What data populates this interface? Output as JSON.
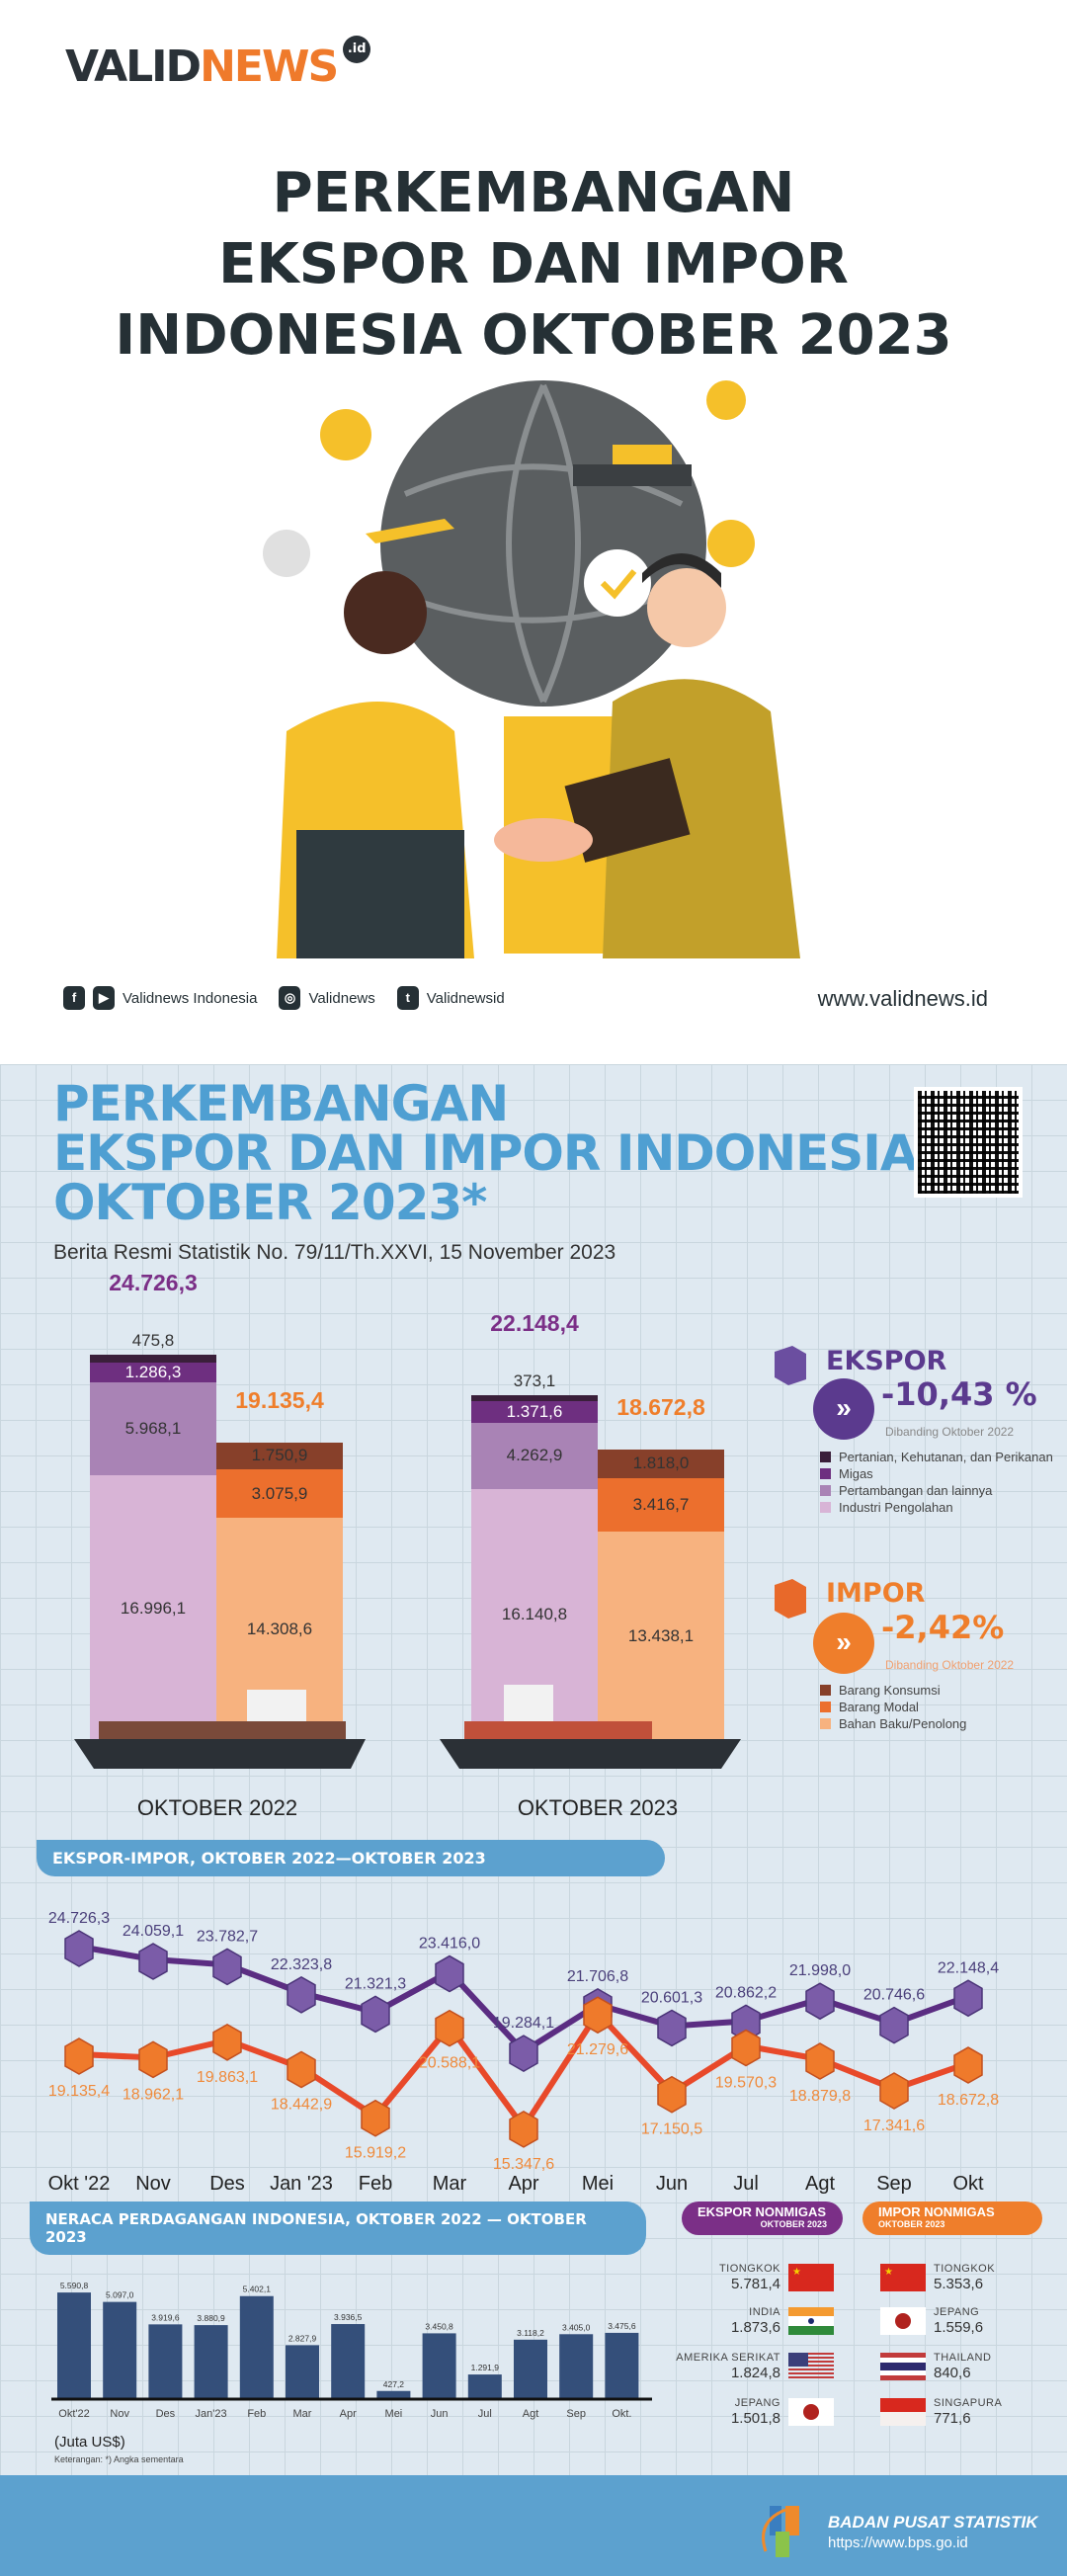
{
  "header": {
    "logo_text_dark": "VALID",
    "logo_text_orange": "NEWS",
    "logo_badge": ".id",
    "title_lines": [
      "PERKEMBANGAN",
      "EKSPOR DAN IMPOR",
      "INDONESIA OKTOBER 2023"
    ]
  },
  "social": {
    "facebook_youtube": "Validnews Indonesia",
    "instagram": "Validnews",
    "twitter": "Validnewsid",
    "website": "www.validnews.id"
  },
  "infographic": {
    "title_lines": [
      "PERKEMBANGAN",
      "EKSPOR DAN IMPOR INDONESIA",
      "OKTOBER 2023*"
    ],
    "subtitle": "Berita Resmi Statistik No. 79/11/Th.XXVI, 15 November 2023"
  },
  "colors": {
    "ekspor": "#7b2f87",
    "impor": "#ef7e2b",
    "title_blue": "#4f9fd2",
    "neraca_bar": "#344f7a"
  },
  "chart_data": [
    {
      "type": "bar",
      "stacked": true,
      "categories": [
        "OKTOBER 2022",
        "OKTOBER 2023"
      ],
      "ekspor": {
        "totals": [
          "24.726,3",
          "22.148,4"
        ],
        "series": [
          {
            "name": "Industri Pengolahan",
            "values": [
              16996.1,
              16140.8
            ],
            "labels": [
              "16.996,1",
              "16.140,8"
            ],
            "color": "#d8b4d6"
          },
          {
            "name": "Pertambangan dan lainnya",
            "values": [
              5968.1,
              4262.9
            ],
            "labels": [
              "5.968,1",
              "4.262,9"
            ],
            "color": "#a983b5"
          },
          {
            "name": "Migas",
            "values": [
              1286.3,
              1371.6
            ],
            "labels": [
              "1.286,3",
              "1.371,6"
            ],
            "color": "#6e2f80"
          },
          {
            "name": "Pertanian, Kehutanan, dan Perikanan",
            "values": [
              475.8,
              373.1
            ],
            "labels": [
              "475,8",
              "373,1"
            ],
            "color": "#3a1f3a"
          }
        ]
      },
      "impor": {
        "totals": [
          "19.135,4",
          "18.672,8"
        ],
        "series": [
          {
            "name": "Bahan Baku/Penolong",
            "values": [
              14308.6,
              13438.1
            ],
            "labels": [
              "14.308,6",
              "13.438,1"
            ],
            "color": "#f7b27f"
          },
          {
            "name": "Barang Modal",
            "values": [
              3075.9,
              3416.7
            ],
            "labels": [
              "3.075,9",
              "3.416,7"
            ],
            "color": "#ec6f2d"
          },
          {
            "name": "Barang Konsumsi",
            "values": [
              1750.9,
              1818.0
            ],
            "labels": [
              "1.750,9",
              "1.818,0"
            ],
            "color": "#87402a"
          }
        ]
      }
    },
    {
      "type": "line",
      "title": "EKSPOR-IMPOR, OKTOBER 2022—OKTOBER 2023",
      "categories": [
        "Okt '22",
        "Nov",
        "Des",
        "Jan '23",
        "Feb",
        "Mar",
        "Apr",
        "Mei",
        "Jun",
        "Jul",
        "Agt",
        "Sep",
        "Okt"
      ],
      "series": [
        {
          "values": [
            24726.3,
            24059.1,
            23782.7,
            22323.8,
            21321.3,
            23416.0,
            19284.1,
            21706.8,
            20601.3,
            20862.2,
            21998.0,
            20746.6,
            22148.4
          ],
          "labels": [
            "24.726,3",
            "24.059,1",
            "23.782,7",
            "22.323,8",
            "21.321,3",
            "23.416,0",
            "19.284,1",
            "21.706,8",
            "20.601,3",
            "20.862,2",
            "21.998,0",
            "20.746,6",
            "22.148,4"
          ],
          "color": "#5b2d82"
        },
        {
          "values": [
            19135.4,
            18962.1,
            19863.1,
            18442.9,
            15919.2,
            20588.1,
            15347.6,
            21279.6,
            17150.5,
            19570.3,
            18879.8,
            17341.6,
            18672.8
          ],
          "labels": [
            "19.135,4",
            "18.962,1",
            "19.863,1",
            "18.442,9",
            "15.919,2",
            "20.588,1",
            "15.347,6",
            "21.279,6",
            "17.150,5",
            "19.570,3",
            "18.879,8",
            "17.341,6",
            "18.672,8"
          ],
          "color": "#e8492a"
        }
      ]
    },
    {
      "type": "bar",
      "title": "NERACA PERDAGANGAN INDONESIA, OKTOBER 2022 — OKTOBER 2023",
      "categories": [
        "Okt'22",
        "Nov",
        "Des",
        "Jan'23",
        "Feb",
        "Mar",
        "Apr",
        "Mei",
        "Jun",
        "Jul",
        "Agt",
        "Sep",
        "Okt."
      ],
      "values": [
        5590.8,
        5097.0,
        3919.6,
        3880.9,
        5402.1,
        2827.9,
        3936.5,
        427.2,
        3450.8,
        1291.9,
        3118.2,
        3405.0,
        3475.6
      ],
      "labels": [
        "5.590,8",
        "5.097,0",
        "3.919,6",
        "3.880,9",
        "5.402,1",
        "2.827,9",
        "3.936,5",
        "427,2",
        "3.450,8",
        "1.291,9",
        "3.118,2",
        "3.405,0",
        "3.475,6"
      ],
      "unit": "(Juta US$)",
      "note": "Keterangan: *) Angka sementara"
    }
  ],
  "summary": {
    "ekspor": {
      "title": "EKSPOR",
      "change": "-10,43 %",
      "compare": "Dibanding Oktober 2022"
    },
    "impor": {
      "title": "IMPOR",
      "change": "-2,42%",
      "compare": "Dibanding Oktober 2022"
    }
  },
  "nonmigas": {
    "ekspor": {
      "title": "EKSPOR NONMIGAS",
      "subtitle": "OKTOBER 2023",
      "countries": [
        {
          "name": "TIONGKOK",
          "value": "5.781,4",
          "flag": "china"
        },
        {
          "name": "INDIA",
          "value": "1.873,6",
          "flag": "india"
        },
        {
          "name": "AMERIKA SERIKAT",
          "value": "1.824,8",
          "flag": "usa"
        },
        {
          "name": "JEPANG",
          "value": "1.501,8",
          "flag": "japan"
        }
      ]
    },
    "impor": {
      "title": "IMPOR NONMIGAS",
      "subtitle": "OKTOBER 2023",
      "countries": [
        {
          "name": "TIONGKOK",
          "value": "5.353,6",
          "flag": "china"
        },
        {
          "name": "JEPANG",
          "value": "1.559,6",
          "flag": "japan"
        },
        {
          "name": "THAILAND",
          "value": "840,6",
          "flag": "thailand"
        },
        {
          "name": "SINGAPURA",
          "value": "771,6",
          "flag": "singapore"
        }
      ]
    }
  },
  "footer": {
    "org": "BADAN PUSAT STATISTIK",
    "url": "https://www.bps.go.id"
  }
}
